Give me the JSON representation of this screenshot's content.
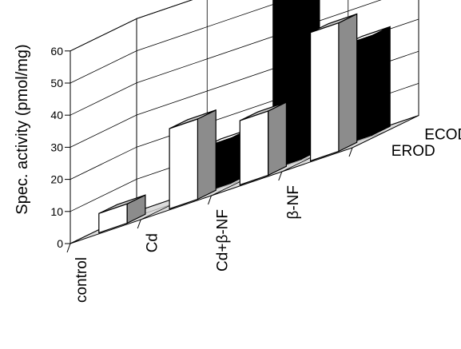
{
  "chart_data": {
    "type": "bar",
    "style": "3d-grouped-bar",
    "title": "",
    "xlabel": "",
    "ylabel": "Spec. activity (pmol/mg)",
    "ylim": [
      0,
      60
    ],
    "yticks": [
      "0",
      "10",
      "20",
      "30",
      "40",
      "50",
      "60"
    ],
    "grid": true,
    "categories": [
      "control",
      "Cd",
      "Cd+β-NF",
      "β-NF"
    ],
    "series": [
      {
        "name": "EROD",
        "values": [
          6,
          25,
          20,
          40
        ],
        "front_color": "#ffffff",
        "side_color": "#8c8c8c",
        "top_color": "#c8c8c8"
      },
      {
        "name": "ECOD",
        "values": [
          0,
          14,
          58,
          31
        ],
        "front_color": "#000000",
        "side_color": "#000000",
        "top_color": "#ffffff"
      }
    ],
    "colors": {
      "floor": "#dcdcdc",
      "grid": "#000000",
      "walls": "#ffffff"
    }
  }
}
